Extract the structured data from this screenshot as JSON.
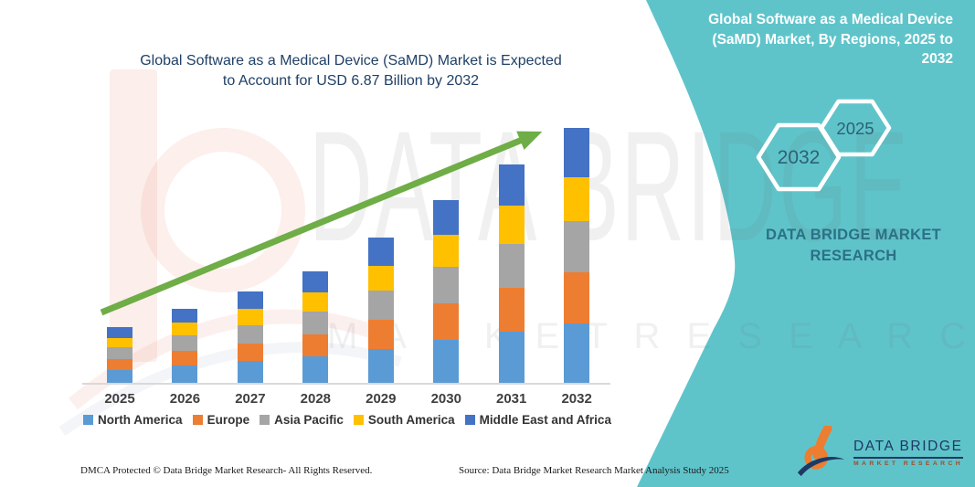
{
  "page": {
    "background": "#FFFFFF",
    "teal_color": "#5FC4CA"
  },
  "main_chart": {
    "title_line1": "Global Software as a Medical Device (SaMD) Market is Expected",
    "title_line2": "to Account for USD 6.87 Billion by 2032"
  },
  "chart_data": {
    "type": "bar",
    "stacked": true,
    "title": "Global Software as a Medical Device (SaMD) Market is Expected to Account for USD 6.87 Billion by 2032",
    "unit": "USD Billion",
    "categories": [
      "2025",
      "2026",
      "2027",
      "2028",
      "2029",
      "2030",
      "2031",
      "2032"
    ],
    "series": [
      {
        "name": "North America",
        "color": "#5B9BD5",
        "values": [
          0.35,
          0.47,
          0.58,
          0.71,
          0.92,
          1.16,
          1.38,
          1.61
        ]
      },
      {
        "name": "Europe",
        "color": "#ED7D31",
        "values": [
          0.3,
          0.4,
          0.49,
          0.6,
          0.78,
          0.99,
          1.18,
          1.37
        ]
      },
      {
        "name": "Asia Pacific",
        "color": "#A5A5A5",
        "values": [
          0.3,
          0.4,
          0.49,
          0.6,
          0.78,
          0.99,
          1.18,
          1.37
        ]
      },
      {
        "name": "South America",
        "color": "#FFC000",
        "values": [
          0.26,
          0.35,
          0.43,
          0.52,
          0.68,
          0.86,
          1.03,
          1.2
        ]
      },
      {
        "name": "Middle East and Africa",
        "color": "#4472C4",
        "values": [
          0.29,
          0.38,
          0.47,
          0.57,
          0.75,
          0.93,
          1.12,
          1.32
        ]
      }
    ],
    "totals": [
      1.5,
      2.0,
      2.46,
      3.0,
      3.91,
      4.93,
      5.89,
      6.87
    ],
    "projected_2032_total_usd_billion": 6.87,
    "ylim": [
      0,
      7
    ],
    "gridlines": false,
    "y_axis_labels": false,
    "legend_position": "bottom",
    "trend_arrow": true,
    "trend_arrow_color": "#6FAD47"
  },
  "side_panel": {
    "title_line1": "Global Software as a Medical Device",
    "title_line2": "(SaMD) Market, By Regions, 2025 to",
    "title_line3": "2032",
    "hexagon_large_label": "2032",
    "hexagon_small_label": "2025",
    "hexagon_text_color": "#2d6175",
    "brand_line1": "DATA BRIDGE MARKET",
    "brand_line2": "RESEARCH"
  },
  "watermark": {
    "big_text": "DATA BRIDGE",
    "spaced_text": "M A R K E T    R E S E A R C H"
  },
  "brand_logo": {
    "name": "DATA BRIDGE",
    "subtitle": "MARKET RESEARCH",
    "navy": "#1F3864",
    "orange": "#ED7D31"
  },
  "footer": {
    "dmca": "DMCA Protected © Data Bridge Market Research-  All Rights Reserved.",
    "source": "Source: Data Bridge Market Research  Market Analysis Study 2025"
  }
}
